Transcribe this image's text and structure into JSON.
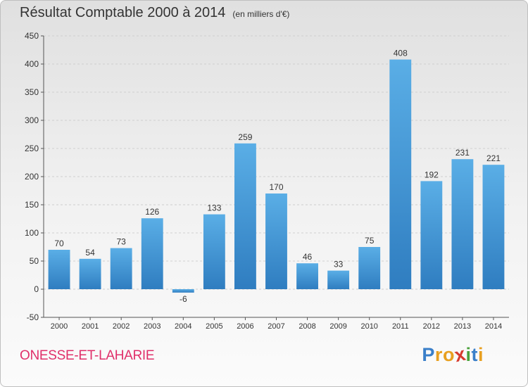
{
  "header": {
    "title": "Résultat Comptable 2000 à 2014",
    "subtitle": "(en milliers d'€)"
  },
  "footer": {
    "commune": "ONESSE-ET-LAHARIE",
    "brand": "Proxiti",
    "brand_letters": [
      {
        "ch": "P",
        "color": "#3a7fc9"
      },
      {
        "ch": "r",
        "color": "#e8a020"
      },
      {
        "ch": "o",
        "color": "#e8a020"
      },
      {
        "ch": "x",
        "color": "#d63a2e"
      },
      {
        "ch": "i",
        "color": "#4aa23c"
      },
      {
        "ch": "t",
        "color": "#3a7fc9"
      },
      {
        "ch": "i",
        "color": "#e8a020"
      }
    ]
  },
  "colors": {
    "bar_top": "#5aaee6",
    "bar_bottom": "#2f7dc0",
    "grid": "#cfcfcf",
    "axis": "#555555",
    "text": "#333333"
  },
  "chart_data": {
    "type": "bar",
    "title": "Résultat Comptable 2000 à 2014",
    "subtitle": "(en milliers d'€)",
    "xlabel": "",
    "ylabel": "",
    "categories": [
      "2000",
      "2001",
      "2002",
      "2003",
      "2004",
      "2005",
      "2006",
      "2007",
      "2008",
      "2009",
      "2010",
      "2011",
      "2012",
      "2013",
      "2014"
    ],
    "values": [
      70,
      54,
      73,
      126,
      -6,
      133,
      259,
      170,
      46,
      33,
      75,
      408,
      192,
      231,
      221
    ],
    "ylim": [
      -50,
      450
    ],
    "yticks": [
      -50,
      0,
      50,
      100,
      150,
      200,
      250,
      300,
      350,
      400,
      450
    ],
    "grid": true
  }
}
